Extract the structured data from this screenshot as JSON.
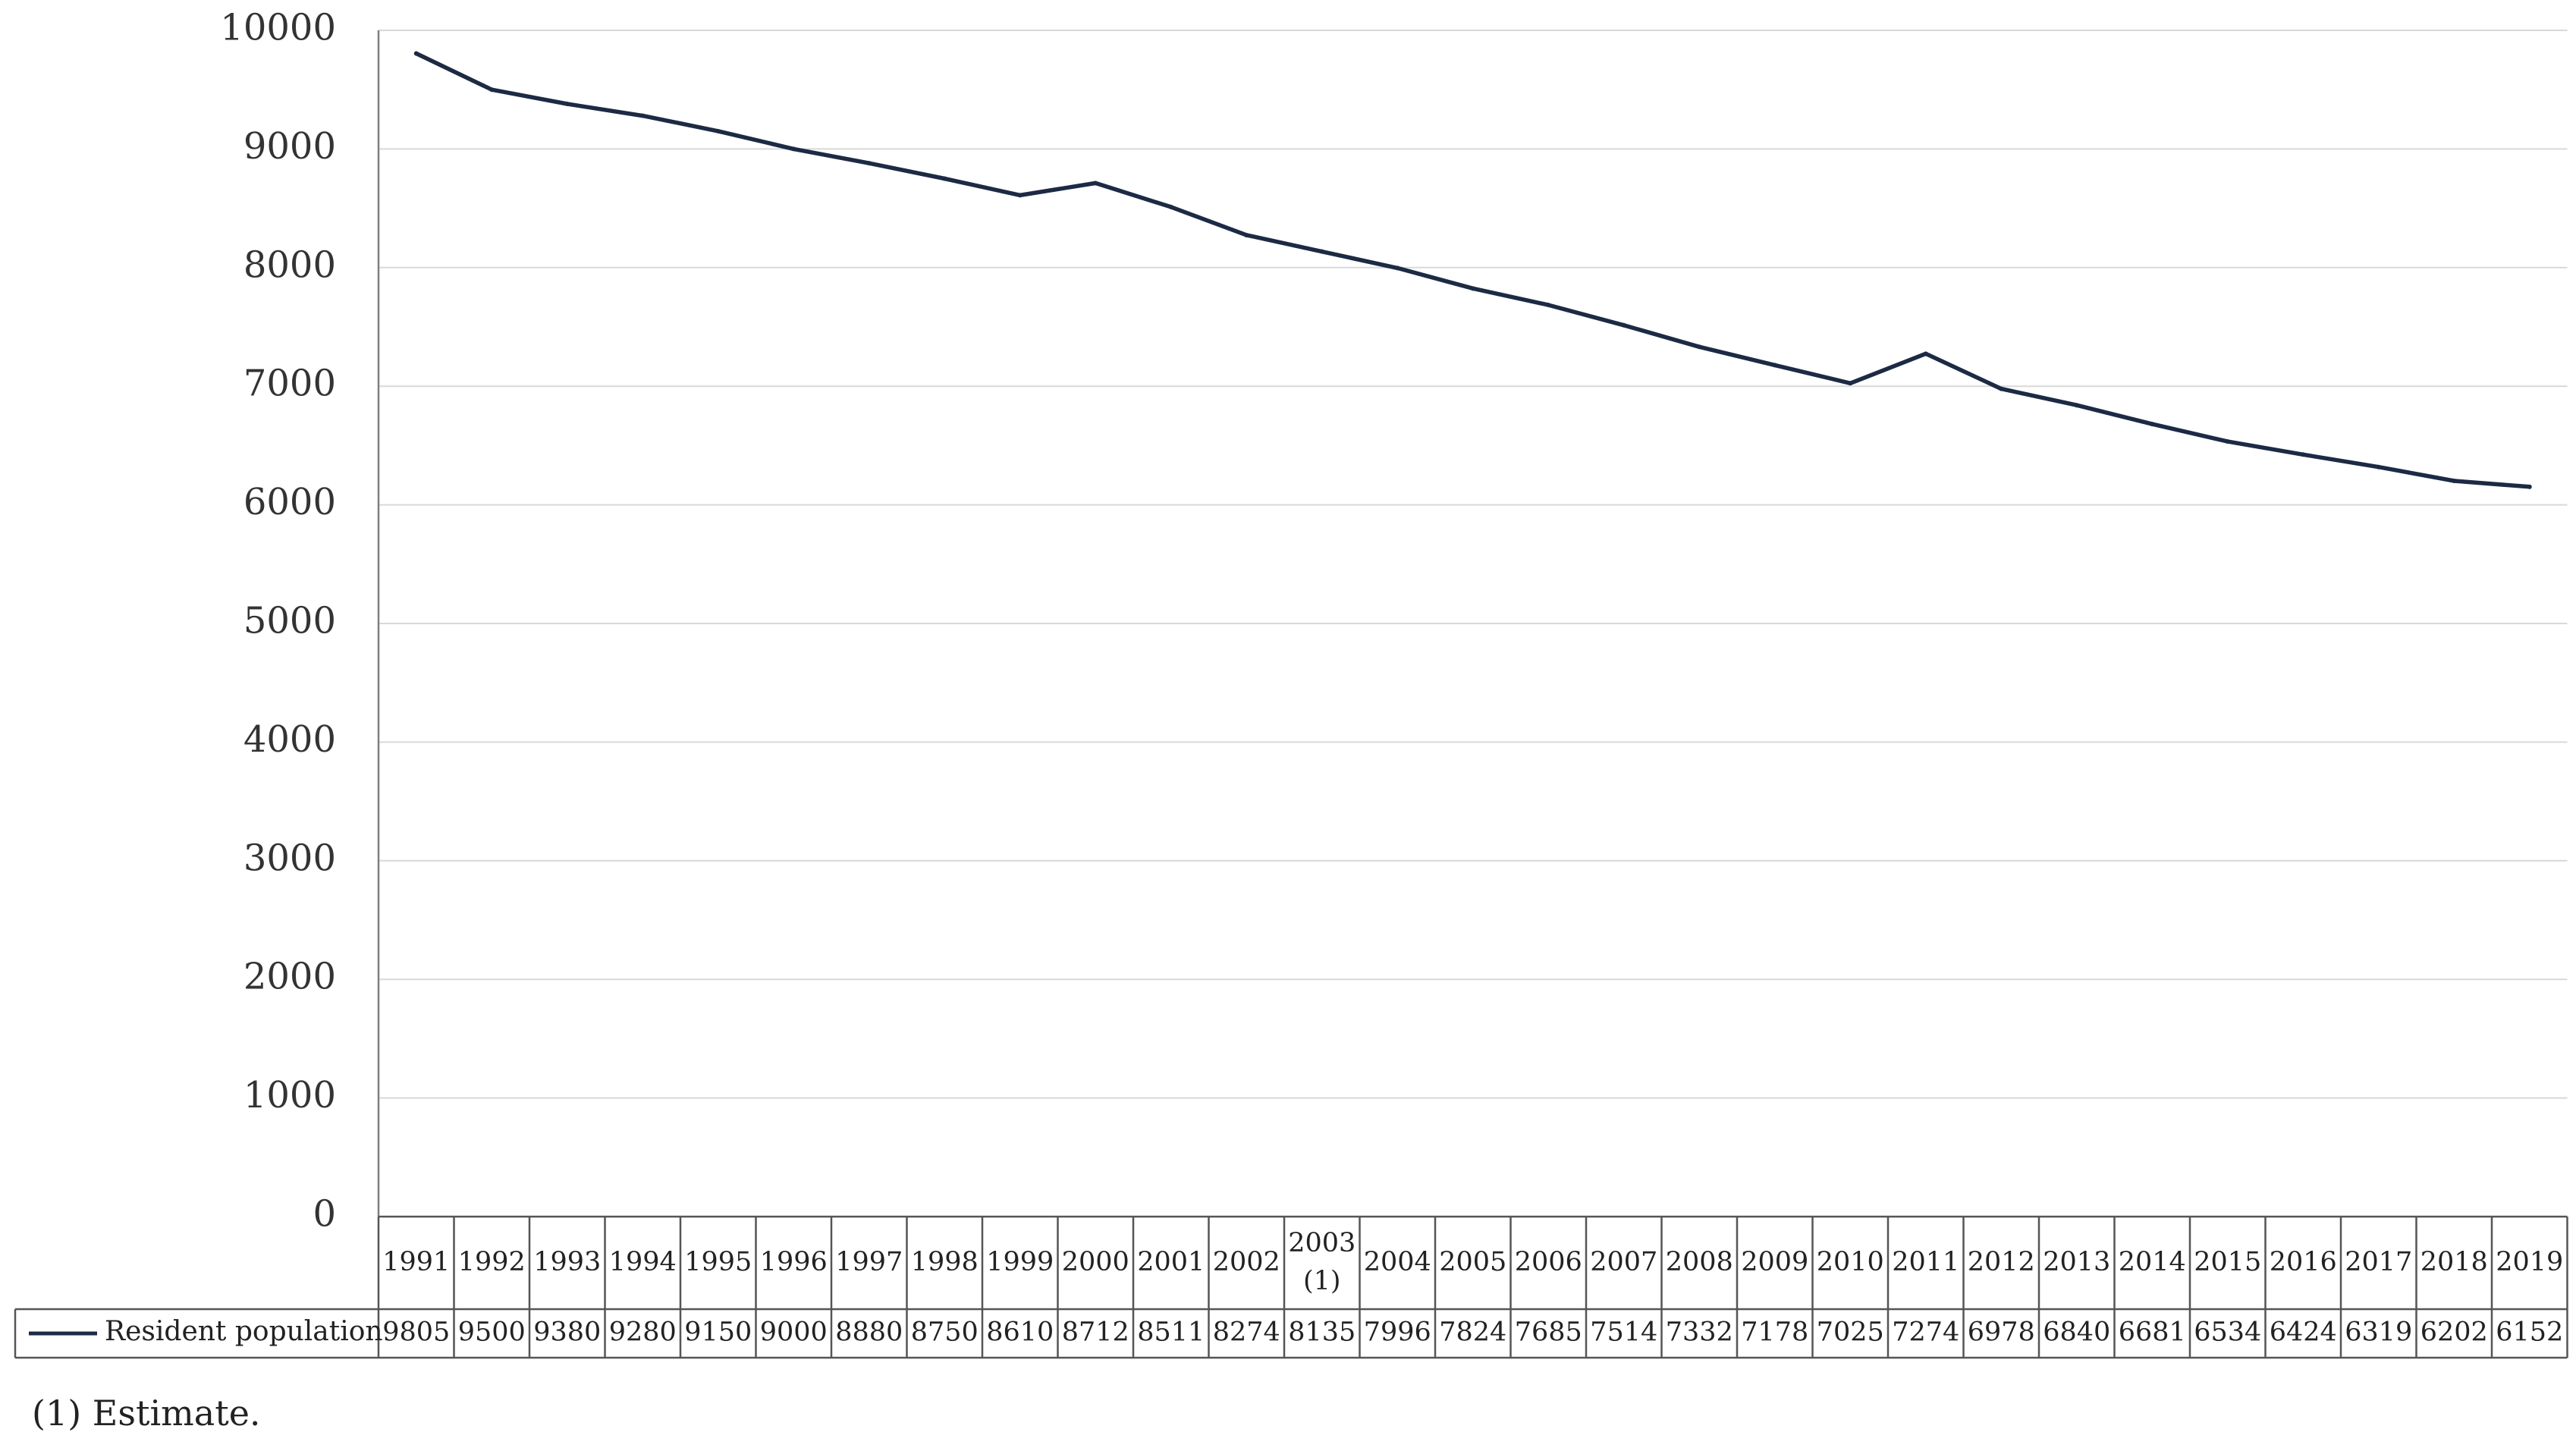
{
  "chart_data": {
    "type": "line",
    "title": "",
    "xlabel": "",
    "ylabel": "",
    "ylim": [
      0,
      10000
    ],
    "yticks": [
      0,
      1000,
      2000,
      3000,
      4000,
      5000,
      6000,
      7000,
      8000,
      9000,
      10000
    ],
    "grid": true,
    "legend": "bottom-left (data table)",
    "categories": [
      "1991",
      "1992",
      "1993",
      "1994",
      "1995",
      "1996",
      "1997",
      "1998",
      "1999",
      "2000",
      "2001",
      "2002",
      "2003\n(1)",
      "2004",
      "2005",
      "2006",
      "2007",
      "2008",
      "2009",
      "2010",
      "2011",
      "2012",
      "2013",
      "2014",
      "2015",
      "2016",
      "2017",
      "2018",
      "2019"
    ],
    "series": [
      {
        "name": "Resident population",
        "color": "#1c2a44",
        "values": [
          9805,
          9500,
          9380,
          9280,
          9150,
          9000,
          8880,
          8750,
          8610,
          8712,
          8511,
          8274,
          8135,
          7996,
          7824,
          7685,
          7514,
          7332,
          7178,
          7025,
          7274,
          6978,
          6840,
          6681,
          6534,
          6424,
          6319,
          6202,
          6152
        ]
      }
    ]
  },
  "footnote": "(1) Estimate."
}
